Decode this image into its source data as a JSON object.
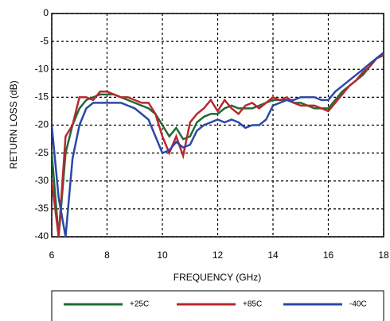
{
  "chart_data": {
    "type": "line",
    "xlabel": "FREQUENCY (GHz)",
    "ylabel": "RETURN LOSS (dB)",
    "xlim": [
      6,
      18
    ],
    "xticks": [
      6,
      8,
      10,
      12,
      14,
      16,
      18
    ],
    "ylim": [
      -40,
      0
    ],
    "yticks": [
      -40,
      -35,
      -30,
      -25,
      -20,
      -15,
      -10,
      -5,
      0
    ],
    "grid": true,
    "legend": "bottom",
    "x": [
      6,
      6.25,
      6.5,
      6.75,
      7,
      7.25,
      7.5,
      7.75,
      8,
      8.25,
      8.5,
      8.75,
      9,
      9.25,
      9.5,
      9.75,
      10,
      10.25,
      10.5,
      10.75,
      11,
      11.25,
      11.5,
      11.75,
      12,
      12.25,
      12.5,
      12.75,
      13,
      13.25,
      13.5,
      13.75,
      14,
      14.25,
      14.5,
      14.75,
      15,
      15.25,
      15.5,
      15.75,
      16,
      16.25,
      16.5,
      16.75,
      17,
      17.25,
      17.5,
      17.75,
      18
    ],
    "series": [
      {
        "name": "+25C",
        "color": "#1e6b35",
        "values": [
          -25,
          -40,
          -25,
          -20,
          -17,
          -15.5,
          -15,
          -14.5,
          -14.5,
          -14.5,
          -15,
          -15.5,
          -16,
          -16.5,
          -17,
          -18,
          -20,
          -22,
          -20.5,
          -22.5,
          -22,
          -19.5,
          -18.5,
          -18,
          -18,
          -17,
          -16.5,
          -17,
          -17,
          -17,
          -16.5,
          -16,
          -15.5,
          -15.5,
          -15.5,
          -16,
          -16,
          -16.5,
          -17,
          -17,
          -17,
          -15.5,
          -14,
          -13,
          -12,
          -11,
          -9.5,
          -8,
          -7.5
        ]
      },
      {
        "name": "+85C",
        "color": "#b8282e",
        "values": [
          -30,
          -40,
          -22,
          -20,
          -15,
          -15,
          -15.5,
          -14,
          -14,
          -14.5,
          -15,
          -15,
          -15.5,
          -16,
          -16,
          -18,
          -22,
          -25,
          -22,
          -25.5,
          -19.5,
          -18,
          -17,
          -15.5,
          -17.5,
          -15.5,
          -17,
          -18,
          -16.5,
          -16,
          -17,
          -16,
          -15,
          -15.5,
          -15,
          -16,
          -16.5,
          -16.5,
          -16.5,
          -17,
          -17.5,
          -16,
          -14.5,
          -13,
          -12,
          -10.5,
          -9.5,
          -8,
          -7.5
        ]
      },
      {
        "name": "-40C",
        "color": "#2b48a8",
        "values": [
          -20,
          -33,
          -40,
          -26,
          -20,
          -17,
          -16,
          -16,
          -16,
          -16,
          -16,
          -16.5,
          -17,
          -18,
          -19,
          -22,
          -25,
          -24.5,
          -23,
          -24,
          -23.5,
          -21,
          -20,
          -19.5,
          -19,
          -19.5,
          -19,
          -19.5,
          -20.5,
          -20,
          -20,
          -19,
          -16.5,
          -16,
          -15.5,
          -15.5,
          -15,
          -15,
          -15,
          -15.5,
          -15.5,
          -14,
          -13,
          -12,
          -11,
          -10,
          -9,
          -8,
          -7
        ]
      }
    ]
  }
}
